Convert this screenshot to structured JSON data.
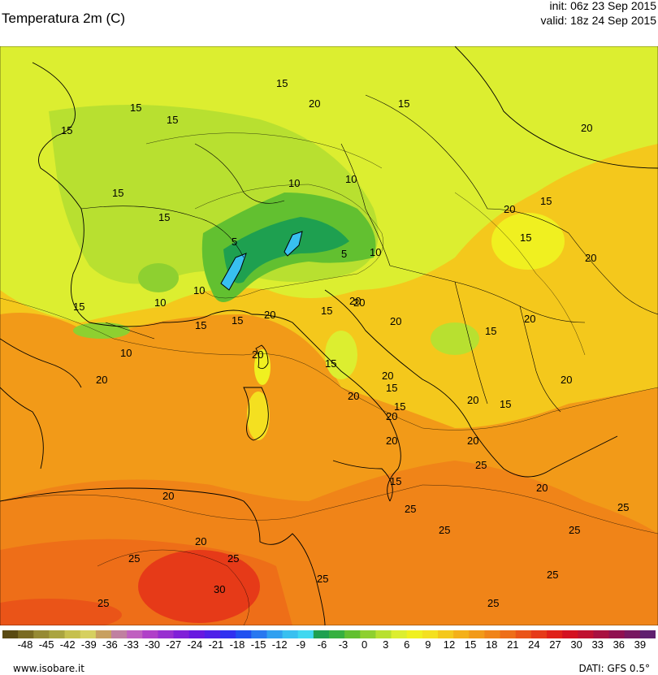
{
  "header": {
    "title": "Temperatura 2m (C)",
    "init": "init: 06z 23 Sep 2015",
    "valid": "valid: 18z 24 Sep 2015"
  },
  "map": {
    "variable": "2m temperature",
    "region": "Europe",
    "contour_labels": [
      "15",
      "15",
      "15",
      "15",
      "10",
      "15",
      "15",
      "20",
      "15",
      "10",
      "15",
      "10",
      "5",
      "5",
      "10",
      "10",
      "15",
      "10",
      "20",
      "15",
      "15",
      "20",
      "20",
      "20",
      "15",
      "20",
      "15",
      "15",
      "20",
      "15",
      "20",
      "15",
      "20",
      "20",
      "25",
      "20",
      "25",
      "20",
      "25",
      "25",
      "30",
      "25",
      "25",
      "20",
      "25",
      "20",
      "20",
      "15",
      "20",
      "20",
      "20",
      "15",
      "20",
      "20",
      "15",
      "20",
      "25",
      "25",
      "25",
      "25"
    ]
  },
  "color_scale": {
    "labels": [
      "-48",
      "-45",
      "-42",
      "-39",
      "-36",
      "-33",
      "-30",
      "-27",
      "-24",
      "-21",
      "-18",
      "-15",
      "-12",
      "-9",
      "-6",
      "-3",
      "0",
      "3",
      "6",
      "9",
      "12",
      "15",
      "18",
      "21",
      "24",
      "27",
      "30",
      "33",
      "36",
      "39"
    ],
    "colors": [
      "#5a4a12",
      "#7a6a22",
      "#968a34",
      "#aaa440",
      "#c6c04e",
      "#d6d060",
      "#c8a060",
      "#c080a0",
      "#c060c0",
      "#b040c8",
      "#9830d0",
      "#8020d8",
      "#6818e0",
      "#5020e8",
      "#3030f0",
      "#2050f0",
      "#2878f0",
      "#30a0f0",
      "#38c0f0",
      "#40d8f0",
      "#1ea050",
      "#36b040",
      "#62c030",
      "#8ed030",
      "#b8e030",
      "#dcee30",
      "#f0f020",
      "#f4e020",
      "#f4c81c",
      "#f4b018",
      "#f29a18",
      "#f08418",
      "#ee6e18",
      "#ea5418",
      "#e63a18",
      "#e02018",
      "#d41020",
      "#c01030",
      "#a81040",
      "#901050",
      "#781860",
      "#602070"
    ]
  },
  "footer": {
    "site": "www.isobare.it",
    "source": "DATI: GFS 0.5°"
  }
}
